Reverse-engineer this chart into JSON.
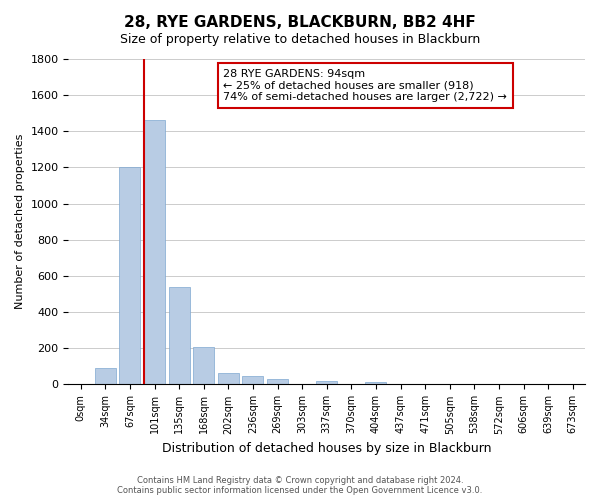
{
  "title": "28, RYE GARDENS, BLACKBURN, BB2 4HF",
  "subtitle": "Size of property relative to detached houses in Blackburn",
  "xlabel": "Distribution of detached houses by size in Blackburn",
  "ylabel": "Number of detached properties",
  "bar_labels": [
    "0sqm",
    "34sqm",
    "67sqm",
    "101sqm",
    "135sqm",
    "168sqm",
    "202sqm",
    "236sqm",
    "269sqm",
    "303sqm",
    "337sqm",
    "370sqm",
    "404sqm",
    "437sqm",
    "471sqm",
    "505sqm",
    "538sqm",
    "572sqm",
    "606sqm",
    "639sqm",
    "673sqm"
  ],
  "bar_values": [
    0,
    90,
    1200,
    1460,
    540,
    205,
    65,
    48,
    30,
    0,
    20,
    0,
    12,
    0,
    0,
    0,
    0,
    0,
    0,
    0,
    0
  ],
  "bar_color": "#b8cce4",
  "bar_edge_color": "#7fa8d0",
  "vline_color": "#cc0000",
  "annotation_title": "28 RYE GARDENS: 94sqm",
  "annotation_line1": "← 25% of detached houses are smaller (918)",
  "annotation_line2": "74% of semi-detached houses are larger (2,722) →",
  "annotation_box_color": "#ffffff",
  "annotation_box_edge": "#cc0000",
  "ylim": [
    0,
    1800
  ],
  "yticks": [
    0,
    200,
    400,
    600,
    800,
    1000,
    1200,
    1400,
    1600,
    1800
  ],
  "footer_line1": "Contains HM Land Registry data © Crown copyright and database right 2024.",
  "footer_line2": "Contains public sector information licensed under the Open Government Licence v3.0.",
  "bg_color": "#ffffff",
  "grid_color": "#cccccc"
}
